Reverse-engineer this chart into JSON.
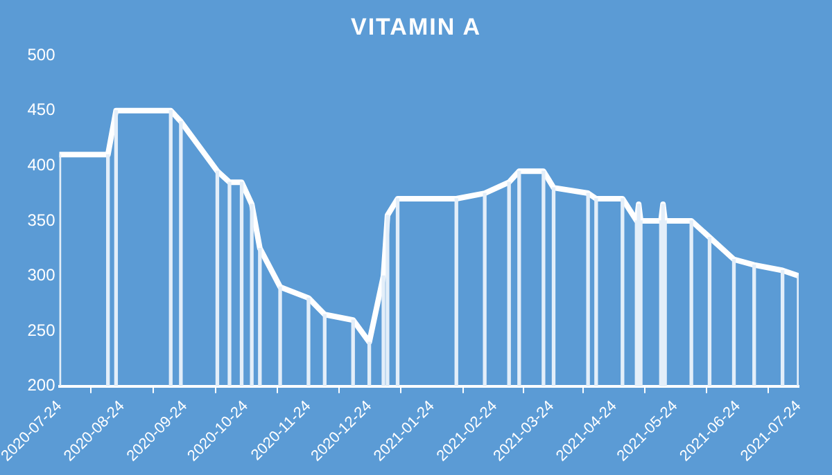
{
  "chart_data": {
    "type": "line",
    "title": "VITAMIN A",
    "x": [
      "2020-07-24",
      "2020-08-17",
      "2020-08-21",
      "2020-09-17",
      "2020-09-22",
      "2020-10-10",
      "2020-10-16",
      "2020-10-22",
      "2020-10-27",
      "2020-10-31",
      "2020-11-10",
      "2020-11-24",
      "2020-12-02",
      "2020-12-16",
      "2020-12-24",
      "2020-12-31",
      "2021-01-02",
      "2021-01-07",
      "2021-02-05",
      "2021-02-19",
      "2021-03-03",
      "2021-03-08",
      "2021-03-20",
      "2021-03-25",
      "2021-04-11",
      "2021-04-15",
      "2021-04-28",
      "2021-05-05",
      "2021-05-06",
      "2021-05-07",
      "2021-05-17",
      "2021-05-18",
      "2021-05-19",
      "2021-06-01",
      "2021-06-10",
      "2021-06-22",
      "2021-07-02",
      "2021-07-16",
      "2021-07-24"
    ],
    "series": [
      {
        "type": "bar",
        "color": "#e3eef9",
        "values": [
          410,
          410,
          450,
          450,
          440,
          395,
          385,
          385,
          365,
          325,
          290,
          280,
          265,
          260,
          240,
          300,
          355,
          370,
          370,
          375,
          385,
          395,
          395,
          380,
          375,
          370,
          370,
          350,
          365,
          350,
          350,
          365,
          350,
          350,
          335,
          315,
          310,
          305,
          300
        ]
      },
      {
        "color": "#ffffff",
        "values": [
          410,
          410,
          450,
          450,
          440,
          395,
          385,
          385,
          365,
          325,
          290,
          280,
          265,
          260,
          240,
          300,
          355,
          370,
          370,
          375,
          385,
          395,
          395,
          380,
          375,
          370,
          370,
          350,
          365,
          350,
          350,
          365,
          350,
          350,
          335,
          315,
          310,
          305,
          300
        ]
      }
    ],
    "xlim": [
      "2020-07-24",
      "2021-07-24"
    ],
    "xticks": [
      "2020-07-24",
      "2020-08-24",
      "2020-09-24",
      "2020-10-24",
      "2020-11-24",
      "2020-12-24",
      "2021-01-24",
      "2021-02-24",
      "2021-03-24",
      "2021-04-24",
      "2021-05-24",
      "2021-06-24",
      "2021-07-24"
    ],
    "ylim": [
      200,
      500
    ],
    "yticks": [
      200,
      250,
      300,
      350,
      400,
      450,
      500
    ],
    "grid": false,
    "legend": false,
    "marker": "none",
    "line_style": "solid"
  }
}
